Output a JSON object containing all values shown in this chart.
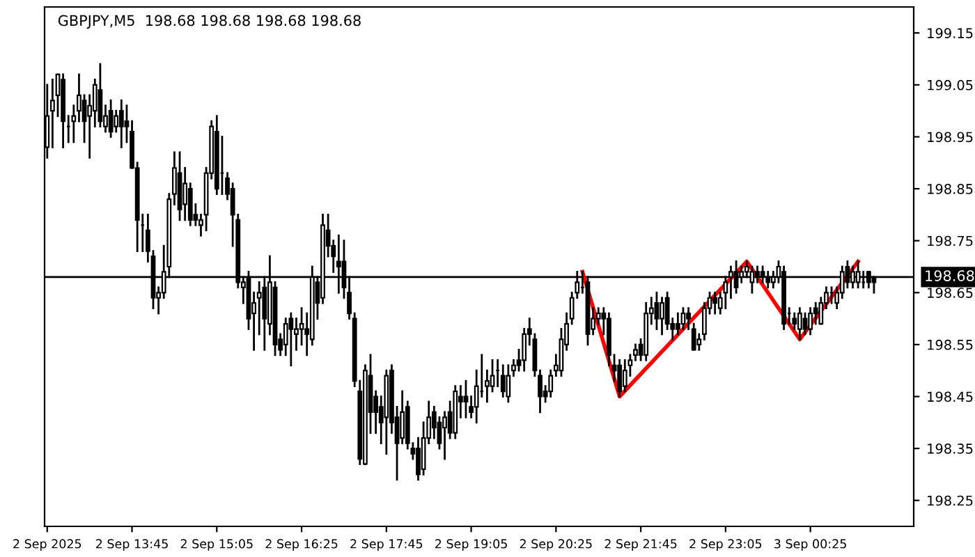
{
  "chart_data": {
    "type": "candlestick",
    "title": "GBPJPY,M5  198.68 198.68 198.68 198.68",
    "categories": [
      "2 Sep 2025",
      null,
      null,
      null,
      null,
      null,
      null,
      null,
      null,
      null,
      null,
      null,
      null,
      null,
      null,
      null,
      "2 Sep 13:45",
      null,
      null,
      null,
      null,
      null,
      null,
      null,
      null,
      null,
      null,
      null,
      null,
      null,
      null,
      null,
      "2 Sep 15:05",
      null,
      null,
      null,
      null,
      null,
      null,
      null,
      null,
      null,
      null,
      null,
      null,
      null,
      null,
      null,
      "2 Sep 16:25",
      null,
      null,
      null,
      null,
      null,
      null,
      null,
      null,
      null,
      null,
      null,
      null,
      null,
      null,
      null,
      "2 Sep 17:45",
      null,
      null,
      null,
      null,
      null,
      null,
      null,
      null,
      null,
      null,
      null,
      null,
      null,
      null,
      null,
      "2 Sep 19:05",
      null,
      null,
      null,
      null,
      null,
      null,
      null,
      null,
      null,
      null,
      null,
      null,
      null,
      null,
      null,
      "2 Sep 20:25",
      null,
      null,
      null,
      null,
      null,
      null,
      null,
      null,
      null,
      null,
      null,
      null,
      null,
      null,
      null,
      "2 Sep 21:45",
      null,
      null,
      null,
      null,
      null,
      null,
      null,
      null,
      null,
      null,
      null,
      null,
      null,
      null,
      null,
      "2 Sep 23:05",
      null,
      null,
      null,
      null,
      null,
      null,
      null,
      null,
      null,
      null,
      null,
      null,
      null,
      null,
      null,
      "3 Sep 00:25",
      null,
      null,
      null,
      null,
      null,
      null,
      null,
      null,
      null,
      null,
      null,
      null,
      null,
      null,
      null,
      null,
      null,
      null,
      null
    ],
    "ohlc": [
      [
        198.93,
        199.05,
        198.91,
        198.99
      ],
      [
        199.0,
        199.06,
        198.93,
        199.02
      ],
      [
        199.03,
        199.07,
        198.99,
        199.07
      ],
      [
        199.06,
        199.07,
        198.93,
        198.98
      ],
      [
        198.97,
        198.99,
        198.94,
        198.97
      ],
      [
        198.98,
        199.01,
        198.94,
        198.99
      ],
      [
        199.0,
        199.07,
        198.98,
        199.03
      ],
      [
        199.02,
        199.03,
        198.94,
        198.98
      ],
      [
        198.99,
        199.03,
        198.91,
        199.01
      ],
      [
        199.0,
        199.06,
        198.97,
        199.05
      ],
      [
        199.04,
        199.09,
        198.97,
        198.98
      ],
      [
        198.97,
        199.01,
        198.96,
        198.99
      ],
      [
        199.0,
        199.02,
        198.95,
        198.96
      ],
      [
        198.97,
        199.0,
        198.96,
        198.99
      ],
      [
        199.0,
        199.02,
        198.93,
        198.97
      ],
      [
        198.98,
        199.01,
        198.94,
        198.97
      ],
      [
        198.96,
        198.98,
        198.89,
        198.89
      ],
      [
        198.89,
        198.9,
        198.73,
        198.79
      ],
      [
        198.78,
        198.8,
        198.73,
        198.78
      ],
      [
        198.77,
        198.8,
        198.71,
        198.73
      ],
      [
        198.72,
        198.73,
        198.62,
        198.64
      ],
      [
        198.64,
        198.66,
        198.61,
        198.65
      ],
      [
        198.65,
        198.74,
        198.64,
        198.69
      ],
      [
        198.7,
        198.84,
        198.68,
        198.83
      ],
      [
        198.84,
        198.92,
        198.82,
        198.89
      ],
      [
        198.88,
        198.92,
        198.79,
        198.81
      ],
      [
        198.82,
        198.89,
        198.79,
        198.86
      ],
      [
        198.85,
        198.86,
        198.78,
        198.79
      ],
      [
        198.8,
        198.82,
        198.78,
        198.79
      ],
      [
        198.78,
        198.8,
        198.76,
        198.79
      ],
      [
        198.8,
        198.89,
        198.77,
        198.88
      ],
      [
        198.88,
        198.98,
        198.87,
        198.97
      ],
      [
        198.96,
        198.99,
        198.84,
        198.85
      ],
      [
        198.88,
        198.95,
        198.84,
        198.88
      ],
      [
        198.87,
        198.88,
        198.83,
        198.84
      ],
      [
        198.85,
        198.86,
        198.74,
        198.8
      ],
      [
        198.79,
        198.8,
        198.66,
        198.67
      ],
      [
        198.66,
        198.68,
        198.63,
        198.67
      ],
      [
        198.68,
        198.69,
        198.58,
        198.6
      ],
      [
        198.61,
        198.65,
        198.54,
        198.63
      ],
      [
        198.64,
        198.67,
        198.57,
        198.65
      ],
      [
        198.66,
        198.68,
        198.54,
        198.6
      ],
      [
        198.59,
        198.72,
        198.57,
        198.67
      ],
      [
        198.66,
        198.67,
        198.53,
        198.55
      ],
      [
        198.56,
        198.57,
        198.53,
        198.54
      ],
      [
        198.55,
        198.6,
        198.53,
        198.59
      ],
      [
        198.6,
        198.61,
        198.51,
        198.58
      ],
      [
        198.57,
        198.6,
        198.54,
        198.58
      ],
      [
        198.58,
        198.62,
        198.55,
        198.59
      ],
      [
        198.58,
        198.61,
        198.53,
        198.57
      ],
      [
        198.56,
        198.7,
        198.55,
        198.68
      ],
      [
        198.67,
        198.68,
        198.6,
        198.63
      ],
      [
        198.64,
        198.8,
        198.63,
        198.78
      ],
      [
        198.77,
        198.8,
        198.72,
        198.74
      ],
      [
        198.74,
        198.75,
        198.69,
        198.72
      ],
      [
        198.71,
        198.76,
        198.65,
        198.7
      ],
      [
        198.71,
        198.75,
        198.64,
        198.66
      ],
      [
        198.65,
        198.68,
        198.6,
        198.61
      ],
      [
        198.6,
        198.61,
        198.47,
        198.48
      ],
      [
        198.46,
        198.48,
        198.32,
        198.33
      ],
      [
        198.32,
        198.51,
        198.32,
        198.5
      ],
      [
        198.49,
        198.53,
        198.38,
        198.42
      ],
      [
        198.45,
        198.46,
        198.38,
        198.42
      ],
      [
        198.43,
        198.45,
        198.36,
        198.4
      ],
      [
        198.41,
        198.5,
        198.34,
        198.49
      ],
      [
        198.5,
        198.51,
        198.38,
        198.4
      ],
      [
        198.41,
        198.43,
        198.29,
        198.36
      ],
      [
        198.37,
        198.46,
        198.36,
        198.42
      ],
      [
        198.43,
        198.44,
        198.35,
        198.36
      ],
      [
        198.35,
        198.36,
        198.33,
        198.34
      ],
      [
        198.35,
        198.37,
        198.29,
        198.3
      ],
      [
        198.31,
        198.4,
        198.3,
        198.37
      ],
      [
        198.37,
        198.44,
        198.36,
        198.41
      ],
      [
        198.42,
        198.43,
        198.37,
        198.39
      ],
      [
        198.4,
        198.41,
        198.35,
        198.36
      ],
      [
        198.39,
        198.42,
        198.33,
        198.41
      ],
      [
        198.42,
        198.44,
        198.37,
        198.38
      ],
      [
        198.38,
        198.47,
        198.37,
        198.46
      ],
      [
        198.45,
        198.47,
        198.41,
        198.44
      ],
      [
        198.45,
        198.48,
        198.41,
        198.44
      ],
      [
        198.43,
        198.45,
        198.41,
        198.42
      ],
      [
        198.43,
        198.5,
        198.4,
        198.47
      ],
      [
        198.46,
        198.53,
        198.45,
        198.46
      ],
      [
        198.47,
        198.5,
        198.44,
        198.48
      ],
      [
        198.47,
        198.52,
        198.46,
        198.49
      ],
      [
        198.5,
        198.52,
        198.47,
        198.5
      ],
      [
        198.49,
        198.51,
        198.45,
        198.46
      ],
      [
        198.45,
        198.51,
        198.44,
        198.49
      ],
      [
        198.5,
        198.52,
        198.49,
        198.51
      ],
      [
        198.52,
        198.54,
        198.5,
        198.51
      ],
      [
        198.52,
        198.58,
        198.5,
        198.57
      ],
      [
        198.58,
        198.6,
        198.55,
        198.57
      ],
      [
        198.56,
        198.57,
        198.49,
        198.5
      ],
      [
        198.49,
        198.5,
        198.42,
        198.45
      ],
      [
        198.46,
        198.47,
        198.44,
        198.45
      ],
      [
        198.46,
        198.5,
        198.45,
        198.49
      ],
      [
        198.5,
        198.53,
        198.49,
        198.51
      ],
      [
        198.5,
        198.58,
        198.49,
        198.56
      ],
      [
        198.55,
        198.61,
        198.54,
        198.59
      ],
      [
        198.6,
        198.65,
        198.59,
        198.64
      ],
      [
        198.65,
        198.69,
        198.64,
        198.67
      ],
      [
        198.66,
        198.69,
        198.65,
        198.66
      ],
      [
        198.67,
        198.68,
        198.55,
        198.57
      ],
      [
        198.58,
        198.62,
        198.57,
        198.6
      ],
      [
        198.6,
        198.62,
        198.59,
        198.61
      ],
      [
        198.61,
        198.62,
        198.57,
        198.6
      ],
      [
        198.6,
        198.61,
        198.51,
        198.53
      ],
      [
        198.51,
        198.53,
        198.48,
        198.5
      ],
      [
        198.51,
        198.52,
        198.45,
        198.46
      ],
      [
        198.47,
        198.52,
        198.46,
        198.5
      ],
      [
        198.51,
        198.53,
        198.49,
        198.52
      ],
      [
        198.53,
        198.55,
        198.52,
        198.54
      ],
      [
        198.55,
        198.56,
        198.52,
        198.53
      ],
      [
        198.53,
        198.63,
        198.52,
        198.61
      ],
      [
        198.61,
        198.64,
        198.59,
        198.62
      ],
      [
        198.63,
        198.65,
        198.58,
        198.6
      ],
      [
        198.6,
        198.64,
        198.57,
        198.63
      ],
      [
        198.64,
        198.65,
        198.58,
        198.59
      ],
      [
        198.59,
        198.6,
        198.56,
        198.58
      ],
      [
        198.59,
        198.61,
        198.57,
        198.58
      ],
      [
        198.59,
        198.62,
        198.58,
        198.61
      ],
      [
        198.61,
        198.62,
        198.58,
        198.6
      ],
      [
        198.58,
        198.59,
        198.54,
        198.54
      ],
      [
        198.55,
        198.57,
        198.54,
        198.56
      ],
      [
        198.57,
        198.63,
        198.56,
        198.62
      ],
      [
        198.62,
        198.65,
        198.61,
        198.64
      ],
      [
        198.64,
        198.65,
        198.61,
        198.63
      ],
      [
        198.62,
        198.65,
        198.61,
        198.64
      ],
      [
        198.65,
        198.68,
        198.62,
        198.67
      ],
      [
        198.68,
        198.7,
        198.64,
        198.69
      ],
      [
        198.69,
        198.71,
        198.65,
        198.66
      ],
      [
        198.68,
        198.7,
        198.67,
        198.69
      ],
      [
        198.69,
        198.71,
        198.68,
        198.7
      ],
      [
        198.67,
        198.7,
        198.65,
        198.69
      ],
      [
        198.69,
        198.7,
        198.67,
        198.68
      ],
      [
        198.69,
        198.7,
        198.67,
        198.68
      ],
      [
        198.68,
        198.69,
        198.66,
        198.67
      ],
      [
        198.67,
        198.69,
        198.66,
        198.68
      ],
      [
        198.68,
        198.71,
        198.67,
        198.7
      ],
      [
        198.69,
        198.7,
        198.58,
        198.59
      ],
      [
        198.61,
        198.62,
        198.59,
        198.61
      ],
      [
        198.6,
        198.61,
        198.58,
        198.59
      ],
      [
        198.58,
        198.62,
        198.56,
        198.61
      ],
      [
        198.6,
        198.61,
        198.57,
        198.58
      ],
      [
        198.58,
        198.62,
        198.57,
        198.61
      ],
      [
        198.62,
        198.63,
        198.59,
        198.61
      ],
      [
        198.59,
        198.64,
        198.59,
        198.63
      ],
      [
        198.63,
        198.66,
        198.62,
        198.65
      ],
      [
        198.65,
        198.66,
        198.63,
        198.65
      ],
      [
        198.63,
        198.66,
        198.62,
        198.65
      ],
      [
        198.65,
        198.7,
        198.64,
        198.69
      ],
      [
        198.7,
        198.71,
        198.66,
        198.67
      ],
      [
        198.67,
        198.7,
        198.66,
        198.69
      ],
      [
        198.67,
        198.71,
        198.66,
        198.69
      ],
      [
        198.67,
        198.69,
        198.66,
        198.67
      ],
      [
        198.69,
        198.69,
        198.66,
        198.67
      ],
      [
        198.68,
        198.68,
        198.65,
        198.67
      ],
      null,
      null,
      null,
      null,
      null,
      null,
      null
    ],
    "series": [
      {
        "type": "line",
        "color": "#ff0000",
        "values": [
          null,
          null,
          null,
          null,
          null,
          null,
          null,
          null,
          null,
          null,
          null,
          null,
          null,
          null,
          null,
          null,
          null,
          null,
          null,
          null,
          null,
          null,
          null,
          null,
          null,
          null,
          null,
          null,
          null,
          null,
          null,
          null,
          null,
          null,
          null,
          null,
          null,
          null,
          null,
          null,
          null,
          null,
          null,
          null,
          null,
          null,
          null,
          null,
          null,
          null,
          null,
          null,
          null,
          null,
          null,
          null,
          null,
          null,
          null,
          null,
          null,
          null,
          null,
          null,
          null,
          null,
          null,
          null,
          null,
          null,
          null,
          null,
          null,
          null,
          null,
          null,
          null,
          null,
          null,
          null,
          null,
          null,
          null,
          null,
          null,
          null,
          null,
          null,
          null,
          null,
          null,
          null,
          null,
          null,
          null,
          null,
          null,
          null,
          null,
          null,
          null,
          198.69,
          null,
          null,
          null,
          null,
          null,
          null,
          198.45,
          null,
          null,
          null,
          null,
          null,
          null,
          null,
          null,
          null,
          null,
          null,
          null,
          null,
          null,
          null,
          null,
          null,
          null,
          null,
          null,
          null,
          null,
          null,
          198.71,
          null,
          null,
          null,
          null,
          null,
          null,
          null,
          null,
          null,
          198.56,
          null,
          null,
          null,
          null,
          null,
          null,
          null,
          null,
          null,
          null,
          198.71,
          null,
          null,
          null,
          null,
          null,
          null,
          null,
          null,
          null,
          null
        ]
      }
    ],
    "ref_lines": [
      {
        "axis": "y",
        "value": 198.68,
        "label": "198.68",
        "color": "#000000"
      }
    ],
    "ylim": [
      198.2,
      199.2
    ],
    "yticks": [
      198.25,
      198.35,
      198.45,
      198.55,
      198.65,
      198.75,
      198.85,
      198.95,
      199.05,
      199.15
    ],
    "grid": false,
    "legend": false
  }
}
